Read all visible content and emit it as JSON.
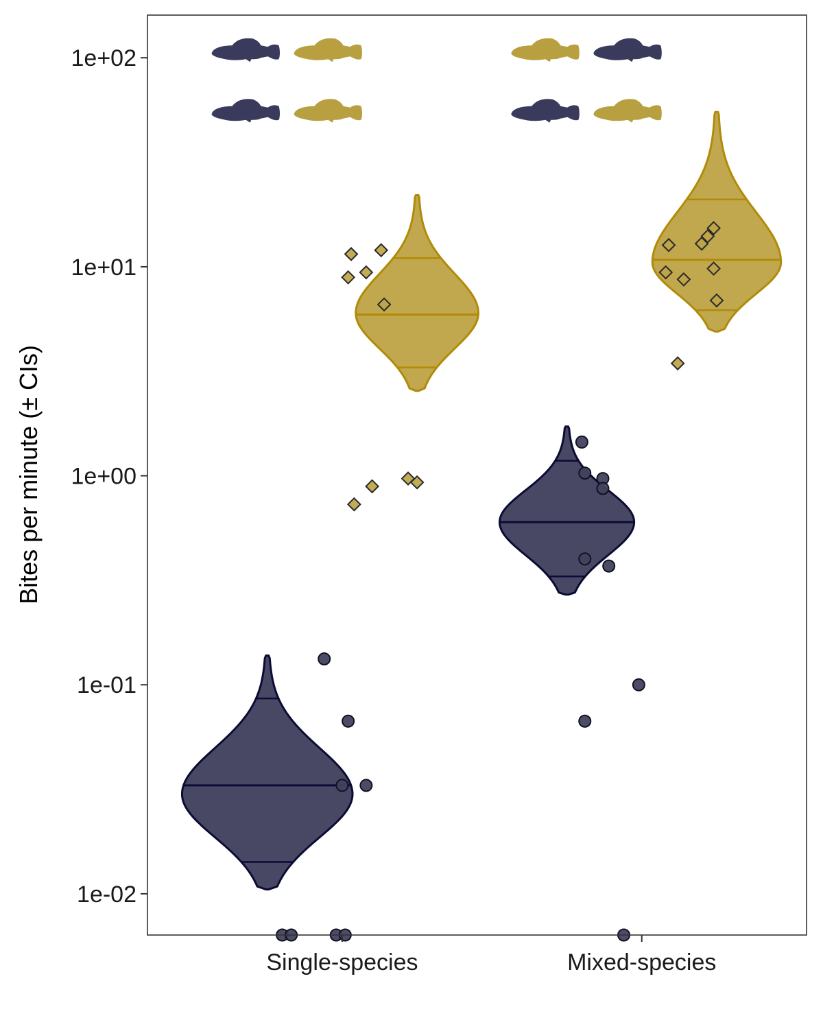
{
  "chart_data": {
    "type": "violin",
    "ylabel": "Bites per minute (± CIs)",
    "xlabel": "",
    "y_scale": "log10",
    "ylim": [
      0.00635,
      160
    ],
    "y_ticks": [
      {
        "value": 0.01,
        "label": "1e-02"
      },
      {
        "value": 0.1,
        "label": "1e-01"
      },
      {
        "value": 1,
        "label": "1e+00"
      },
      {
        "value": 10,
        "label": "1e+01"
      },
      {
        "value": 100,
        "label": "1e+02"
      }
    ],
    "categories": [
      "Single-species",
      "Mixed-species"
    ],
    "grid": false,
    "series": [
      {
        "key": "dark",
        "color": "#3a3a5c",
        "fill": "#42425f",
        "line": "#0b0b33",
        "marker": "circle",
        "groups": [
          {
            "category": "Single-species",
            "violin": {
              "min": 0.0105,
              "max": 0.138,
              "mode": 0.03,
              "median": 0.033,
              "ci_low": 0.0142,
              "ci_high": 0.086,
              "width": 0.28
            },
            "points": [
              {
                "dx": -0.06,
                "y": 0.133
              },
              {
                "dx": 0.02,
                "y": 0.067
              },
              {
                "dx": 0.0,
                "y": 0.033
              },
              {
                "dx": 0.08,
                "y": 0.033
              },
              {
                "dx": -0.2,
                "y": 0.00635
              },
              {
                "dx": -0.17,
                "y": 0.00635
              },
              {
                "dx": -0.02,
                "y": 0.00635
              },
              {
                "dx": 0.01,
                "y": 0.00635
              }
            ]
          },
          {
            "category": "Mixed-species",
            "violin": {
              "min": 0.27,
              "max": 1.72,
              "mode": 0.6,
              "median": 0.6,
              "ci_low": 0.33,
              "ci_high": 1.18,
              "width": 0.22
            },
            "points": [
              {
                "dx": -0.2,
                "y": 1.45
              },
              {
                "dx": -0.19,
                "y": 1.03
              },
              {
                "dx": -0.13,
                "y": 0.97
              },
              {
                "dx": -0.13,
                "y": 0.87
              },
              {
                "dx": -0.19,
                "y": 0.4
              },
              {
                "dx": -0.11,
                "y": 0.37
              },
              {
                "dx": -0.19,
                "y": 0.067
              },
              {
                "dx": -0.01,
                "y": 0.1
              },
              {
                "dx": -0.06,
                "y": 0.00635
              }
            ]
          }
        ]
      },
      {
        "key": "gold",
        "color": "#b8a040",
        "fill": "#bfa448",
        "line": "#b08b08",
        "marker": "diamond",
        "groups": [
          {
            "category": "Single-species",
            "violin": {
              "min": 2.55,
              "max": 22,
              "mode": 6,
              "median": 5.9,
              "ci_low": 3.3,
              "ci_high": 11,
              "width": 0.2
            },
            "points": [
              {
                "dx": 0.03,
                "y": 11.5
              },
              {
                "dx": 0.13,
                "y": 12
              },
              {
                "dx": 0.02,
                "y": 8.9
              },
              {
                "dx": 0.08,
                "y": 9.4
              },
              {
                "dx": 0.14,
                "y": 6.6
              },
              {
                "dx": 0.04,
                "y": 0.73
              },
              {
                "dx": 0.1,
                "y": 0.89
              },
              {
                "dx": 0.22,
                "y": 0.97
              },
              {
                "dx": 0.25,
                "y": 0.93
              }
            ]
          },
          {
            "category": "Mixed-species",
            "violin": {
              "min": 4.9,
              "max": 55,
              "mode": 10.5,
              "median": 10.8,
              "ci_low": 6.2,
              "ci_high": 21,
              "width": 0.21
            },
            "points": [
              {
                "dx": 0.09,
                "y": 12.7
              },
              {
                "dx": 0.2,
                "y": 12.9
              },
              {
                "dx": 0.22,
                "y": 14
              },
              {
                "dx": 0.24,
                "y": 15.3
              },
              {
                "dx": 0.08,
                "y": 9.4
              },
              {
                "dx": 0.14,
                "y": 8.7
              },
              {
                "dx": 0.24,
                "y": 9.8
              },
              {
                "dx": 0.25,
                "y": 6.9
              },
              {
                "dx": 0.12,
                "y": 3.45
              }
            ]
          }
        ]
      }
    ],
    "icons": [
      {
        "category": "Single-species",
        "y": 100,
        "left": "dark",
        "right": "gold",
        "offset": -0.23
      },
      {
        "category": "Single-species",
        "y": 52,
        "left": "dark",
        "right": "gold",
        "offset": -0.23
      },
      {
        "category": "Mixed-species",
        "y": 100,
        "left": "gold",
        "right": "dark",
        "offset": -0.23
      },
      {
        "category": "Mixed-species",
        "y": 52,
        "left": "dark",
        "right": "gold",
        "offset": -0.23
      }
    ],
    "icon_names": [
      "fish-silhouette-icon"
    ]
  }
}
